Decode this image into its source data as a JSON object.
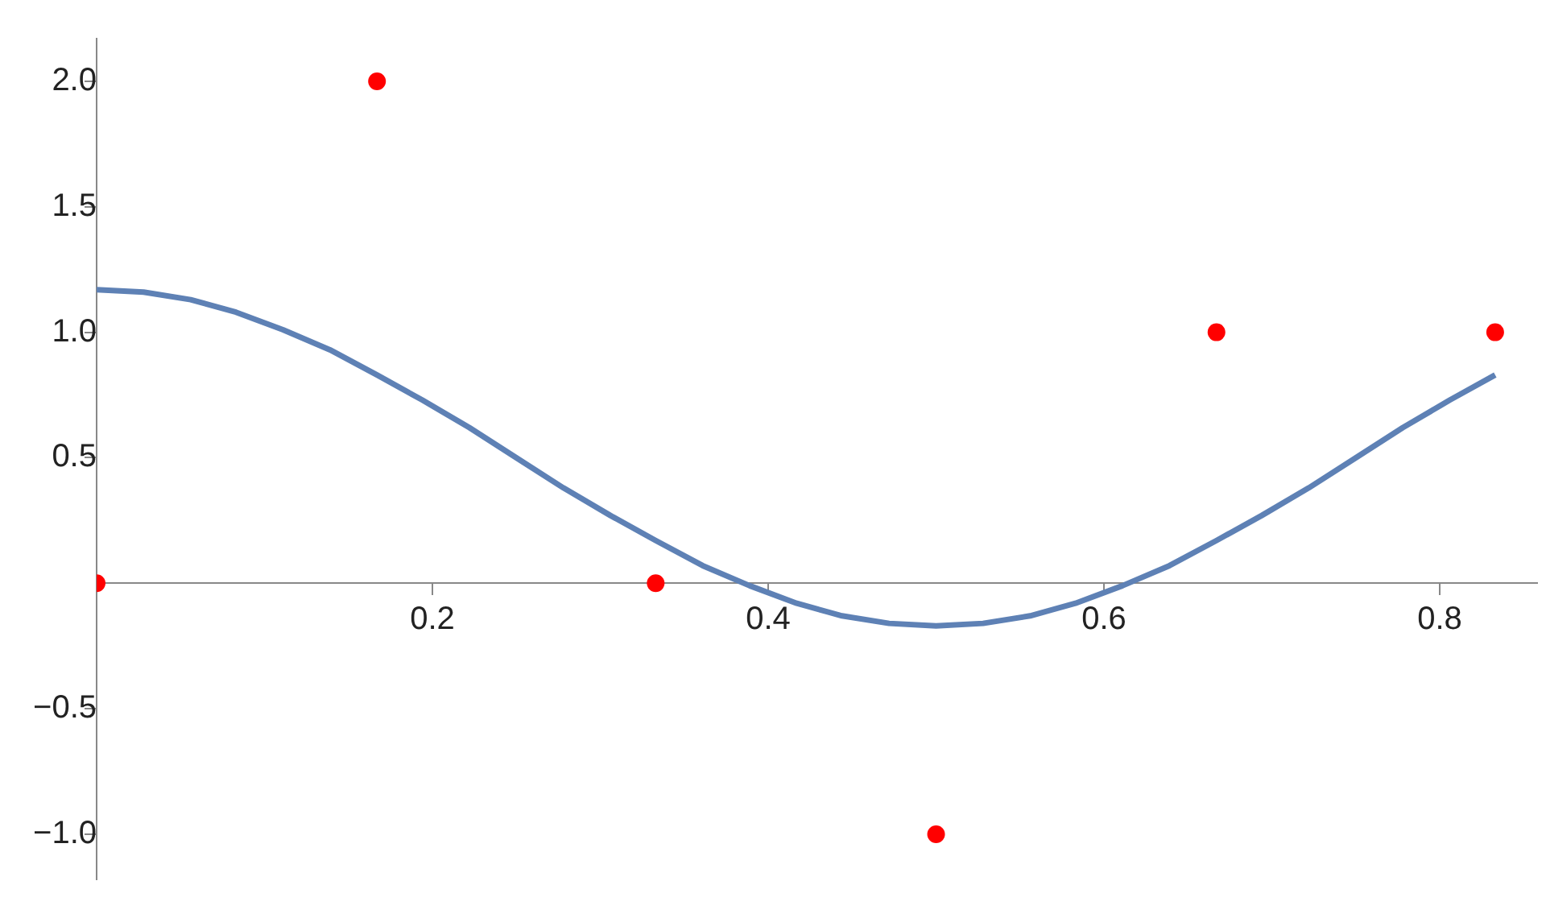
{
  "chart_data": {
    "type": "scatter",
    "xlim": [
      0,
      0.858
    ],
    "ylim": [
      -1.18,
      2.17
    ],
    "xticks": [
      0.2,
      0.4,
      0.6,
      0.8
    ],
    "yticks": [
      {
        "value": -1,
        "label": "−1.0"
      },
      {
        "value": -0.5,
        "label": "−0.5"
      },
      {
        "value": 0.5,
        "label": "0.5"
      },
      {
        "value": 1,
        "label": "1.0"
      },
      {
        "value": 1.5,
        "label": "1.5"
      },
      {
        "value": 2,
        "label": "2.0"
      }
    ],
    "grid": false,
    "legend": false,
    "series": [
      {
        "type": "line",
        "color": "#5e81b5",
        "marker": "none",
        "x": [
          0,
          0.028,
          0.056,
          0.083,
          0.111,
          0.139,
          0.167,
          0.194,
          0.222,
          0.25,
          0.278,
          0.306,
          0.333,
          0.361,
          0.389,
          0.417,
          0.444,
          0.472,
          0.5,
          0.528,
          0.556,
          0.583,
          0.611,
          0.639,
          0.667,
          0.694,
          0.722,
          0.75,
          0.778,
          0.806,
          0.833
        ],
        "values": [
          1.17,
          1.16,
          1.13,
          1.08,
          1.01,
          0.93,
          0.83,
          0.73,
          0.62,
          0.5,
          0.38,
          0.27,
          0.17,
          0.07,
          -0.01,
          -0.08,
          -0.13,
          -0.16,
          -0.17,
          -0.16,
          -0.13,
          -0.08,
          -0.01,
          0.07,
          0.17,
          0.27,
          0.38,
          0.5,
          0.62,
          0.73,
          0.83
        ]
      },
      {
        "color": "#ff0000",
        "marker": "circle",
        "x": [
          0,
          0.167,
          0.333,
          0.5,
          0.667,
          0.833
        ],
        "values": [
          0,
          2,
          0,
          -1,
          1,
          1
        ]
      }
    ]
  }
}
